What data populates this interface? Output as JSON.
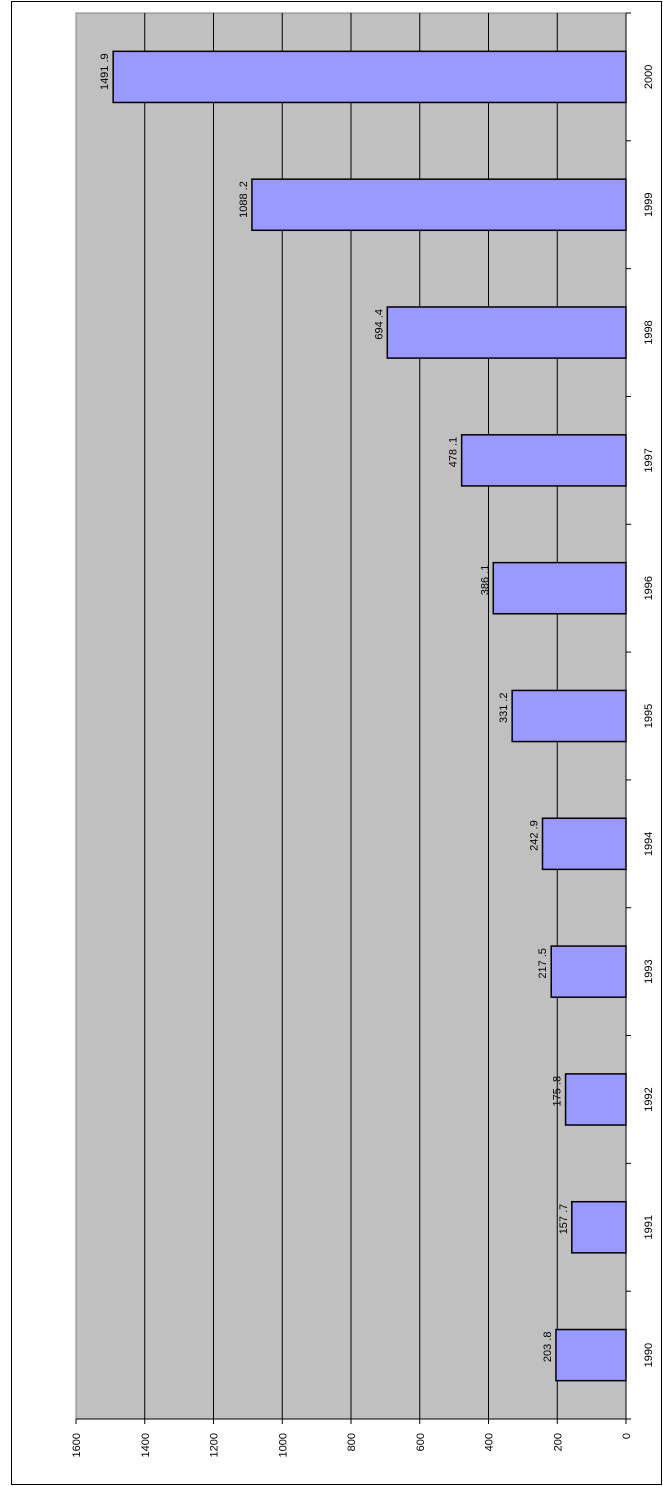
{
  "chart_data": {
    "type": "bar",
    "orientation": "horizontal",
    "rotated": "90deg-clockwise",
    "categories": [
      "1990",
      "1991",
      "1992",
      "1993",
      "1994",
      "1995",
      "1996",
      "1997",
      "1998",
      "1999",
      "2000"
    ],
    "values": [
      203.8,
      157.7,
      175.8,
      217.5,
      242.9,
      331.2,
      386.1,
      478.1,
      694.4,
      1088.2,
      1491.9
    ],
    "value_labels": [
      "203 .8",
      "157 .7",
      "175 .8",
      "217 .5",
      "242 .9",
      "331 .2",
      "386 .1",
      "478 .1",
      "694 .4",
      "1088 .2",
      "1491 .9"
    ],
    "value_axis": {
      "range": [
        0,
        1600
      ],
      "tick_labels": [
        "0",
        "200",
        "400",
        "600",
        "800",
        "1000",
        "1200",
        "1400",
        "1600"
      ],
      "gridlines": true
    },
    "title": "",
    "xlabel": "",
    "ylabel": "",
    "legend": "none",
    "colors": {
      "bar_fill": "#9999ff",
      "bar_stroke": "#000000",
      "plot_background": "#c0c0c0",
      "gridline": "#000000"
    }
  }
}
